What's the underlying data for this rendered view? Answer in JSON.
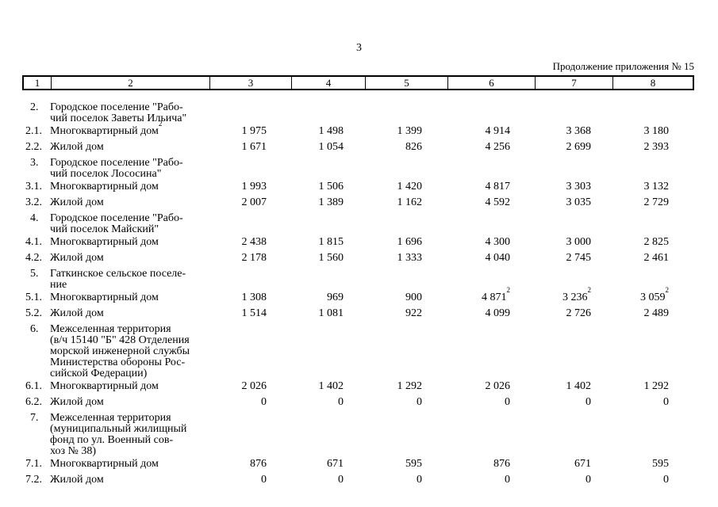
{
  "page": {
    "page_number": "3",
    "continuation_note": "Продолжение приложения № 15"
  },
  "table": {
    "column_numbers": [
      "1",
      "2",
      "3",
      "4",
      "5",
      "6",
      "7",
      "8"
    ],
    "rows": [
      {
        "num": "2.",
        "name_lines": [
          "Городское поселение \"Рабо-",
          "чий поселок Заветы Ильича\""
        ]
      },
      {
        "num": "2.1.",
        "name_lines": [
          "Многоквартирный дом^2"
        ],
        "values": [
          "1 975",
          "1 498",
          "1 399",
          "4 914",
          "3 368",
          "3 180"
        ]
      },
      {
        "num": "2.2.",
        "name_lines": [
          "Жилой дом"
        ],
        "values": [
          "1 671",
          "1 054",
          "826",
          "4 256",
          "2 699",
          "2 393"
        ]
      },
      {
        "num": "3.",
        "name_lines": [
          "Городское поселение \"Рабо-",
          "чий поселок Лососина\""
        ]
      },
      {
        "num": "3.1.",
        "name_lines": [
          "Многоквартирный дом"
        ],
        "values": [
          "1 993",
          "1 506",
          "1 420",
          "4 817",
          "3 303",
          "3 132"
        ]
      },
      {
        "num": "3.2.",
        "name_lines": [
          "Жилой дом"
        ],
        "values": [
          "2 007",
          "1 389",
          "1 162",
          "4 592",
          "3 035",
          "2 729"
        ]
      },
      {
        "num": "4.",
        "name_lines": [
          "Городское поселение \"Рабо-",
          "чий поселок Майский\""
        ]
      },
      {
        "num": "4.1.",
        "name_lines": [
          "Многоквартирный дом"
        ],
        "values": [
          "2 438",
          "1 815",
          "1 696",
          "4 300",
          "3 000",
          "2 825"
        ]
      },
      {
        "num": "4.2.",
        "name_lines": [
          "Жилой дом"
        ],
        "values": [
          "2 178",
          "1 560",
          "1 333",
          "4 040",
          "2 745",
          "2 461"
        ]
      },
      {
        "num": "5.",
        "name_lines": [
          "Гаткинское сельское поселе-",
          "ние"
        ]
      },
      {
        "num": "5.1.",
        "name_lines": [
          "Многоквартирный дом"
        ],
        "values": [
          "1 308",
          "969",
          "900",
          "4 871^2",
          "3 236^2",
          "3 059^2"
        ]
      },
      {
        "num": "5.2.",
        "name_lines": [
          "Жилой дом"
        ],
        "values": [
          "1 514",
          "1 081",
          "922",
          "4 099",
          "2 726",
          "2 489"
        ]
      },
      {
        "num": "6.",
        "name_lines": [
          "Межселенная территория",
          "(в/ч 15140 \"Б\" 428 Отделения",
          "морской инженерной службы",
          "Министерства обороны Рос-",
          "сийской Федерации)"
        ]
      },
      {
        "num": "6.1.",
        "name_lines": [
          "Многоквартирный дом"
        ],
        "values": [
          "2 026",
          "1 402",
          "1 292",
          "2 026",
          "1 402",
          "1 292"
        ]
      },
      {
        "num": "6.2.",
        "name_lines": [
          "Жилой дом"
        ],
        "values": [
          "0",
          "0",
          "0",
          "0",
          "0",
          "0"
        ]
      },
      {
        "num": "7.",
        "name_lines": [
          "Межселенная территория",
          "(муниципальный жилищный",
          "фонд по ул. Военный сов-",
          "хоз № 38)"
        ]
      },
      {
        "num": "7.1.",
        "name_lines": [
          "Многоквартирный дом"
        ],
        "values": [
          "876",
          "671",
          "595",
          "876",
          "671",
          "595"
        ]
      },
      {
        "num": "7.2.",
        "name_lines": [
          "Жилой дом"
        ],
        "values": [
          "0",
          "0",
          "0",
          "0",
          "0",
          "0"
        ]
      }
    ]
  }
}
